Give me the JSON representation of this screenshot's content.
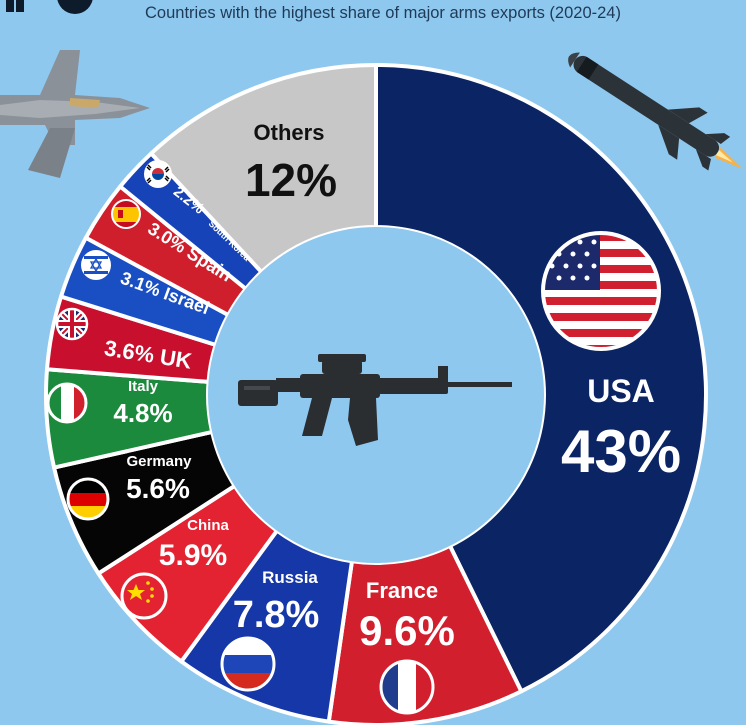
{
  "header": {
    "subtitle": "Countries with the highest share of major arms exports (2020-24)"
  },
  "chart_data": {
    "type": "pie",
    "variant": "donut",
    "title": "Countries with the highest share of major arms exports (2020-24)",
    "unit": "%",
    "slices": [
      {
        "key": "usa",
        "label": "USA",
        "value": 43,
        "display": "43%",
        "color": "#0b2463",
        "flag": "usa"
      },
      {
        "key": "france",
        "label": "France",
        "value": 9.6,
        "display": "9.6%",
        "color": "#d21f2e",
        "flag": "france"
      },
      {
        "key": "russia",
        "label": "Russia",
        "value": 7.8,
        "display": "7.8%",
        "color": "#1537a8",
        "flag": "russia"
      },
      {
        "key": "china",
        "label": "China",
        "value": 5.9,
        "display": "5.9%",
        "color": "#e32332",
        "flag": "china"
      },
      {
        "key": "germany",
        "label": "Germany",
        "value": 5.6,
        "display": "5.6%",
        "color": "#050505",
        "flag": "germany"
      },
      {
        "key": "italy",
        "label": "Italy",
        "value": 4.8,
        "display": "4.8%",
        "color": "#1c8a3c",
        "flag": "italy"
      },
      {
        "key": "uk",
        "label": "UK",
        "value": 3.6,
        "display": "3.6% UK",
        "color": "#c8102e",
        "flag": "uk"
      },
      {
        "key": "israel",
        "label": "Israel",
        "value": 3.1,
        "display": "3.1% Israel",
        "color": "#1a4fc4",
        "flag": "israel"
      },
      {
        "key": "spain",
        "label": "Spain",
        "value": 3.0,
        "display": "3.0% Spain",
        "color": "#d01f2c",
        "flag": "spain"
      },
      {
        "key": "south_korea",
        "label": "South Korea",
        "value": 2.2,
        "display": "2.2%",
        "color": "#1743b8",
        "flag": "south_korea"
      },
      {
        "key": "others",
        "label": "Others",
        "value": 12,
        "display": "12%",
        "color": "#c7c7c7",
        "flag": ""
      }
    ],
    "labels": {
      "usa_name": "USA",
      "usa_value": "43%",
      "france_name": "France",
      "france_value": "9.6%",
      "russia_name": "Russia",
      "russia_value": "7.8%",
      "china_name": "China",
      "china_value": "5.9%",
      "germany_name": "Germany",
      "germany_value": "5.6%",
      "italy_name": "Italy",
      "italy_value": "4.8%",
      "uk": "3.6% UK",
      "israel": "3.1% Israel",
      "spain": "3.0% Spain",
      "korea_value": "2.2%",
      "korea_name": "South Korea",
      "others_name": "Others",
      "others_value": "12%"
    },
    "decorations": [
      "fighter-jet-icon",
      "missile-icon",
      "rifle-icon"
    ]
  }
}
